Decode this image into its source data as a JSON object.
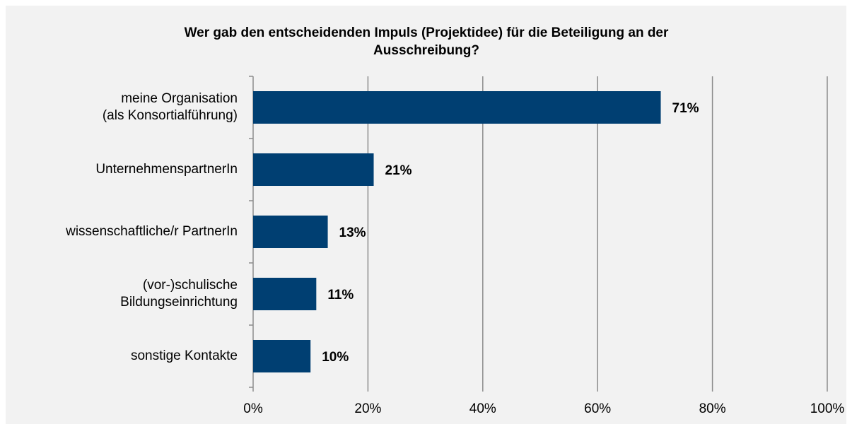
{
  "chart_data": {
    "type": "bar",
    "orientation": "horizontal",
    "title": "Wer gab den entscheidenden Impuls (Projektidee) für die Beteiligung an der Ausschreibung?",
    "categories": [
      "meine Organisation\n(als Konsortialführung)",
      "UnternehmenspartnerIn",
      "wissenschaftliche/r PartnerIn",
      "(vor-)schulische\nBildungseinrichtung",
      "sonstige Kontakte"
    ],
    "values": [
      71,
      21,
      13,
      11,
      10
    ],
    "value_labels": [
      "71%",
      "21%",
      "13%",
      "11%",
      "10%"
    ],
    "color": "#003f72",
    "xlim": [
      0,
      100
    ],
    "xticks": [
      {
        "value": 0,
        "label": "0%"
      },
      {
        "value": 20,
        "label": "20%"
      },
      {
        "value": 40,
        "label": "40%"
      },
      {
        "value": 60,
        "label": "60%"
      },
      {
        "value": 80,
        "label": "80%"
      },
      {
        "value": 100,
        "label": "100%"
      }
    ],
    "grid": true
  }
}
